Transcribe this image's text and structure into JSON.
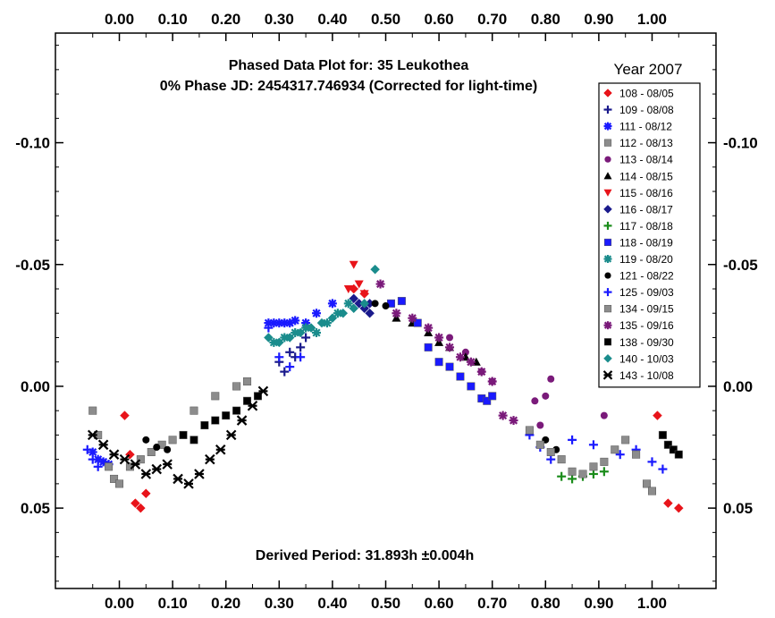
{
  "chart_data": {
    "type": "scatter",
    "title": "Phased Data Plot for: 35 Leukothea",
    "subtitle": "0% Phase JD:  2454317.746934   (Corrected for light-time)",
    "footer": "Derived Period: 31.893h  ±0.004h",
    "legend_title": "Year 2007",
    "xlim": [
      -0.12,
      1.12
    ],
    "ylim": [
      -0.145,
      0.083
    ],
    "y_inverted": true,
    "x_ticks": [
      "0.00",
      "0.10",
      "0.20",
      "0.30",
      "0.40",
      "0.50",
      "0.60",
      "0.70",
      "0.80",
      "0.90",
      "1.00"
    ],
    "x_tick_values": [
      0,
      0.1,
      0.2,
      0.3,
      0.4,
      0.5,
      0.6,
      0.7,
      0.8,
      0.9,
      1.0
    ],
    "y_ticks": [
      "-0.10",
      "-0.05",
      "0.00",
      "0.05"
    ],
    "y_tick_values": [
      -0.1,
      -0.05,
      0.0,
      0.05
    ],
    "legend_position": "top-right",
    "colors": {
      "red": "#e8141a",
      "navy": "#1a1a8c",
      "blue": "#1a1aff",
      "gray": "#8c8c8c",
      "purple": "#7a1a7a",
      "black": "#000000",
      "green": "#1a8c1a",
      "teal": "#1a8c8c"
    },
    "series": [
      {
        "name": "108 - 08/05",
        "marker": "diamond",
        "color": "#e8141a",
        "x": [
          0.01,
          0.02,
          0.03,
          0.04,
          0.05,
          0.44,
          0.46,
          1.01,
          1.03,
          1.05
        ],
        "y": [
          0.012,
          0.028,
          0.048,
          0.05,
          0.044,
          -0.04,
          -0.038,
          0.012,
          0.048,
          0.05
        ]
      },
      {
        "name": "109 - 08/08",
        "marker": "plus",
        "color": "#1a1a8c",
        "x": [
          0.3,
          0.31,
          0.32,
          0.33,
          0.34,
          0.35
        ],
        "y": [
          -0.01,
          -0.006,
          -0.014,
          -0.012,
          -0.016,
          -0.02
        ]
      },
      {
        "name": "111 - 08/12",
        "marker": "asterisk",
        "color": "#1a1aff",
        "x": [
          -0.05,
          -0.04,
          -0.03,
          -0.02,
          0.28,
          0.29,
          0.3,
          0.31,
          0.32,
          0.33,
          0.35,
          0.37,
          0.4
        ],
        "y": [
          0.027,
          0.03,
          0.031,
          0.032,
          -0.026,
          -0.026,
          -0.026,
          -0.026,
          -0.026,
          -0.027,
          -0.026,
          -0.03,
          -0.034
        ]
      },
      {
        "name": "112 - 08/13",
        "marker": "square",
        "color": "#8c8c8c",
        "x": [
          -0.05,
          -0.04,
          -0.02,
          -0.01,
          0.0,
          0.02,
          0.04,
          0.06,
          0.08,
          0.1,
          0.14,
          0.18,
          0.22,
          0.24
        ],
        "y": [
          0.01,
          0.02,
          0.033,
          0.038,
          0.04,
          0.033,
          0.03,
          0.027,
          0.024,
          0.022,
          0.01,
          0.004,
          0.0,
          -0.002
        ]
      },
      {
        "name": "113 - 08/14",
        "marker": "circle",
        "color": "#7a1a7a",
        "x": [
          0.62,
          0.65,
          0.68,
          0.7,
          0.78,
          0.79,
          0.8,
          0.81,
          0.91
        ],
        "y": [
          -0.02,
          -0.014,
          -0.006,
          -0.002,
          0.006,
          0.016,
          0.004,
          -0.003,
          0.012
        ]
      },
      {
        "name": "114 - 08/15",
        "marker": "triangle",
        "color": "#000000",
        "x": [
          0.52,
          0.55,
          0.58,
          0.6,
          0.62,
          0.65,
          0.67
        ],
        "y": [
          -0.028,
          -0.026,
          -0.022,
          -0.018,
          -0.016,
          -0.012,
          -0.01
        ]
      },
      {
        "name": "115 - 08/16",
        "marker": "triangle-down",
        "color": "#e8141a",
        "x": [
          0.43,
          0.44,
          0.45,
          0.46
        ],
        "y": [
          -0.04,
          -0.05,
          -0.042,
          -0.038
        ]
      },
      {
        "name": "116 - 08/17",
        "marker": "diamond",
        "color": "#1a1a8c",
        "x": [
          0.44,
          0.45,
          0.46,
          0.47,
          0.47
        ],
        "y": [
          -0.036,
          -0.034,
          -0.032,
          -0.03,
          -0.034
        ]
      },
      {
        "name": "117 - 08/18",
        "marker": "plus",
        "color": "#1a8c1a",
        "x": [
          0.83,
          0.85,
          0.87,
          0.89,
          0.91
        ],
        "y": [
          0.037,
          0.038,
          0.037,
          0.036,
          0.035
        ]
      },
      {
        "name": "118 - 08/19",
        "marker": "square",
        "color": "#1a1aff",
        "x": [
          0.51,
          0.53,
          0.56,
          0.58,
          0.6,
          0.62,
          0.64,
          0.66,
          0.68,
          0.69,
          0.7
        ],
        "y": [
          -0.034,
          -0.035,
          -0.026,
          -0.016,
          -0.01,
          -0.008,
          -0.004,
          0.0,
          0.005,
          0.006,
          0.004
        ]
      },
      {
        "name": "119 - 08/20",
        "marker": "asterisk",
        "color": "#1a8c8c",
        "x": [
          0.29,
          0.31,
          0.33,
          0.35,
          0.37,
          0.39,
          0.41,
          0.43
        ],
        "y": [
          -0.018,
          -0.02,
          -0.022,
          -0.024,
          -0.022,
          -0.026,
          -0.03,
          -0.034
        ]
      },
      {
        "name": "121 - 08/22",
        "marker": "circle",
        "color": "#000000",
        "x": [
          0.05,
          0.07,
          0.09,
          0.48,
          0.5,
          0.8,
          0.82
        ],
        "y": [
          0.022,
          0.025,
          0.026,
          -0.034,
          -0.033,
          0.022,
          0.026
        ]
      },
      {
        "name": "125 - 09/03",
        "marker": "plus",
        "color": "#1a1aff",
        "x": [
          -0.06,
          -0.05,
          -0.04,
          0.28,
          0.3,
          0.32,
          0.34,
          0.77,
          0.79,
          0.81,
          0.85,
          0.89,
          0.94,
          0.97,
          1.0,
          1.02
        ],
        "y": [
          0.026,
          0.03,
          0.033,
          -0.024,
          -0.012,
          -0.008,
          -0.012,
          0.02,
          0.025,
          0.03,
          0.022,
          0.024,
          0.028,
          0.026,
          0.031,
          0.034
        ]
      },
      {
        "name": "134 - 09/15",
        "marker": "square",
        "color": "#8c8c8c",
        "x": [
          0.77,
          0.79,
          0.81,
          0.83,
          0.85,
          0.87,
          0.89,
          0.91,
          0.93,
          0.95,
          0.97,
          0.99,
          1.0
        ],
        "y": [
          0.018,
          0.024,
          0.027,
          0.03,
          0.035,
          0.036,
          0.033,
          0.031,
          0.026,
          0.022,
          0.028,
          0.04,
          0.043
        ]
      },
      {
        "name": "135 - 09/16",
        "marker": "asterisk",
        "color": "#7a1a7a",
        "x": [
          0.49,
          0.52,
          0.55,
          0.58,
          0.6,
          0.62,
          0.64,
          0.66,
          0.68,
          0.7,
          0.72,
          0.74
        ],
        "y": [
          -0.042,
          -0.03,
          -0.028,
          -0.024,
          -0.02,
          -0.016,
          -0.012,
          -0.01,
          -0.006,
          -0.002,
          0.012,
          0.014
        ]
      },
      {
        "name": "138 - 09/30",
        "marker": "square",
        "color": "#000000",
        "x": [
          0.12,
          0.14,
          0.16,
          0.18,
          0.2,
          0.22,
          0.24,
          0.26,
          1.02,
          1.03,
          1.04,
          1.05
        ],
        "y": [
          0.02,
          0.022,
          0.016,
          0.014,
          0.012,
          0.01,
          0.006,
          0.004,
          0.02,
          0.024,
          0.026,
          0.028
        ]
      },
      {
        "name": "140 - 10/03",
        "marker": "diamond",
        "color": "#1a8c8c",
        "x": [
          0.28,
          0.3,
          0.32,
          0.34,
          0.36,
          0.38,
          0.4,
          0.42,
          0.44,
          0.46,
          0.48
        ],
        "y": [
          -0.02,
          -0.018,
          -0.02,
          -0.022,
          -0.024,
          -0.026,
          -0.028,
          -0.03,
          -0.032,
          -0.034,
          -0.048
        ]
      },
      {
        "name": "143 - 10/08",
        "marker": "x-star",
        "color": "#000000",
        "x": [
          -0.05,
          -0.03,
          -0.01,
          0.01,
          0.03,
          0.05,
          0.07,
          0.09,
          0.11,
          0.13,
          0.15,
          0.17,
          0.19,
          0.21,
          0.23,
          0.25,
          0.27
        ],
        "y": [
          0.02,
          0.024,
          0.028,
          0.03,
          0.032,
          0.036,
          0.034,
          0.032,
          0.038,
          0.04,
          0.036,
          0.03,
          0.026,
          0.02,
          0.014,
          0.008,
          0.002
        ]
      }
    ]
  }
}
